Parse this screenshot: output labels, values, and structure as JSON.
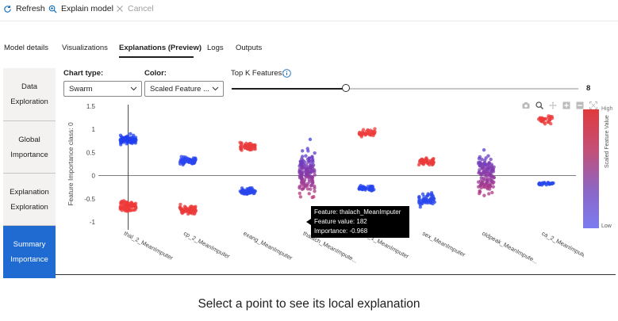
{
  "toolbar": {
    "refresh_label": "Refresh",
    "explain_label": "Explain model",
    "cancel_label": "Cancel"
  },
  "tabs": [
    {
      "label": "Model details",
      "active": false
    },
    {
      "label": "Visualizations",
      "active": false
    },
    {
      "label": "Explanations (Preview)",
      "active": true
    },
    {
      "label": "Logs",
      "active": false
    },
    {
      "label": "Outputs",
      "active": false
    }
  ],
  "subnav": [
    {
      "label": "Data Exploration",
      "active": false
    },
    {
      "label": "Global Importance",
      "active": false
    },
    {
      "label": "Explanation Exploration",
      "active": false
    },
    {
      "label": "Summary Importance",
      "active": true
    }
  ],
  "controls": {
    "chart_type_label": "Chart type:",
    "chart_type_value": "Swarm",
    "color_label": "Color:",
    "color_value": "Scaled Feature ...",
    "top_k_label": "Top K Features:",
    "top_k_value": "8",
    "top_k_fraction": 0.33
  },
  "chart_data": {
    "type": "scatter",
    "ylabel": "Feature Importance class: 0",
    "ylim": [
      -1.1,
      1.6
    ],
    "yticks": [
      "1.5",
      "1",
      "0.5",
      "0",
      "-0.5",
      "-1"
    ],
    "categories": [
      "thal_2_MeanImputer",
      "cp_2_MeanImputer",
      "exang_MeanImputer",
      "thalach_MeanImpute...",
      "ca_1_MeanImputer",
      "sex_MeanImputer",
      "oldpeak_MeanImpute...",
      "ca_2_MeanImputer"
    ],
    "clusters": [
      {
        "feature": 0,
        "center": 0.78,
        "spread": 0.09,
        "color": "#1f3ff0",
        "count": 70
      },
      {
        "feature": 0,
        "center": -0.65,
        "spread": 0.1,
        "color": "#ef3a3a",
        "count": 75
      },
      {
        "feature": 1,
        "center": 0.32,
        "spread": 0.07,
        "color": "#2a44f0",
        "count": 55
      },
      {
        "feature": 1,
        "center": -0.73,
        "spread": 0.09,
        "color": "#ec3a3a",
        "count": 60
      },
      {
        "feature": 2,
        "center": 0.63,
        "spread": 0.08,
        "color": "#ea3b3b",
        "count": 55
      },
      {
        "feature": 2,
        "center": -0.33,
        "spread": 0.06,
        "color": "#2a46ee",
        "count": 55
      },
      {
        "feature": 3,
        "center": 0.05,
        "spread": 0.45,
        "color": "#8a4aa6",
        "count": 140
      },
      {
        "feature": 4,
        "center": 0.92,
        "spread": 0.07,
        "color": "#ed3d3d",
        "count": 45
      },
      {
        "feature": 4,
        "center": -0.27,
        "spread": 0.05,
        "color": "#2544ee",
        "count": 45
      },
      {
        "feature": 5,
        "center": 0.3,
        "spread": 0.06,
        "color": "#ea3b3b",
        "count": 45
      },
      {
        "feature": 5,
        "center": -0.52,
        "spread": 0.12,
        "color": "#2a48ee",
        "count": 55
      },
      {
        "feature": 6,
        "center": 0.05,
        "spread": 0.4,
        "color": "#7c46b3",
        "count": 120
      },
      {
        "feature": 7,
        "center": 1.2,
        "spread": 0.07,
        "color": "#ec3a3a",
        "count": 30
      },
      {
        "feature": 7,
        "center": -0.17,
        "spread": 0.03,
        "color": "#2748ee",
        "count": 30
      }
    ],
    "colorbar": {
      "title": "Scaled Feature Value",
      "high": "High",
      "low": "Low"
    }
  },
  "tooltip": {
    "feature": "Feature: thalach_MeanImputer",
    "value": "Feature value: 182",
    "importance": "Importance: -0.968"
  },
  "caption": "Select a point to see its local explanation"
}
